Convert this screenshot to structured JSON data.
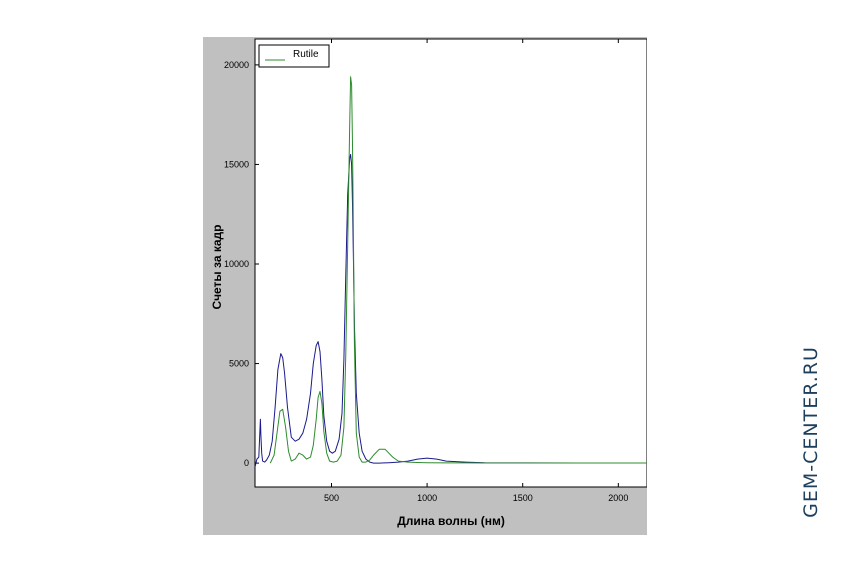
{
  "watermark": "GEM-CENTER.RU",
  "chart_data": {
    "type": "line",
    "xlabel": "Длина волны (нм)",
    "ylabel": "Счеты за кадр",
    "xlim": [
      100,
      2150
    ],
    "ylim": [
      -1200,
      21300
    ],
    "x_ticks": [
      500,
      1000,
      1500,
      2000
    ],
    "y_ticks": [
      0,
      5000,
      10000,
      15000,
      20000
    ],
    "grid": false,
    "legend": {
      "position": "top-left",
      "entries": [
        "Rutile"
      ]
    },
    "colors": {
      "Rutile": "#2e8b2e",
      "blue_trace": "#1a1a8c",
      "panel": "#c0c0c0"
    },
    "series": [
      {
        "name": "Rutile",
        "color": "#2e8b2e",
        "x": [
          180,
          200,
          215,
          230,
          245,
          260,
          275,
          290,
          310,
          330,
          350,
          370,
          390,
          405,
          420,
          430,
          440,
          450,
          460,
          475,
          490,
          510,
          530,
          550,
          565,
          575,
          585,
          595,
          600,
          605,
          610,
          615,
          620,
          630,
          645,
          660,
          680,
          700,
          720,
          750,
          780,
          800,
          820,
          850,
          900,
          950,
          1000,
          1100,
          1200,
          1300,
          1500,
          1700,
          2000,
          2150
        ],
        "y": [
          0,
          400,
          1500,
          2600,
          2700,
          1800,
          600,
          100,
          200,
          500,
          400,
          200,
          300,
          900,
          2200,
          3300,
          3600,
          3000,
          1600,
          500,
          100,
          50,
          100,
          400,
          1800,
          5500,
          11000,
          17000,
          19400,
          19000,
          16000,
          11000,
          6000,
          1500,
          300,
          50,
          50,
          150,
          400,
          700,
          700,
          500,
          300,
          100,
          50,
          30,
          20,
          10,
          10,
          5,
          5,
          5,
          5,
          5
        ]
      },
      {
        "color": "#1a1a8c",
        "x": [
          100,
          110,
          120,
          125,
          128,
          131,
          135,
          140,
          150,
          160,
          175,
          190,
          205,
          220,
          235,
          245,
          255,
          270,
          290,
          310,
          330,
          350,
          370,
          390,
          405,
          420,
          430,
          440,
          450,
          460,
          475,
          490,
          505,
          520,
          540,
          555,
          565,
          575,
          585,
          595,
          600,
          605,
          610,
          615,
          620,
          630,
          645,
          660,
          680,
          700,
          720,
          750,
          800,
          850,
          900,
          950,
          1000,
          1050,
          1100,
          1200,
          1300,
          1500,
          1800,
          2150
        ],
        "y": [
          -200,
          200,
          300,
          1500,
          2200,
          1400,
          500,
          100,
          50,
          150,
          400,
          1100,
          2800,
          4700,
          5500,
          5300,
          4500,
          2800,
          1300,
          1100,
          1200,
          1500,
          2200,
          3500,
          5000,
          5900,
          6100,
          5600,
          4200,
          2400,
          1100,
          600,
          500,
          600,
          1200,
          2500,
          5200,
          9500,
          13500,
          15300,
          15500,
          15000,
          13000,
          10000,
          7000,
          3500,
          1500,
          600,
          200,
          50,
          0,
          0,
          20,
          50,
          100,
          200,
          250,
          200,
          100,
          50,
          20,
          10,
          5,
          5
        ]
      }
    ]
  }
}
